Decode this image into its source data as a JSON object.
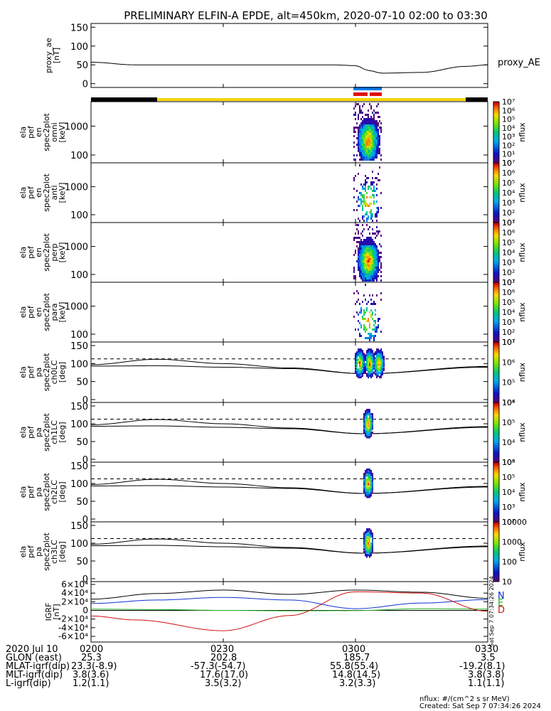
{
  "title": "PRELIMINARY ELFIN-A EPDE, alt=450km, 2020-07-10 02:00 to 03:30",
  "bar_colors": {
    "shadow": "#000000",
    "sunlit": "#f5d400",
    "dataA": "#0a78e6",
    "dataB": "#e01010"
  },
  "chart_data": [
    {
      "type": "line",
      "id": "proxy_ae",
      "ylabel_lines": [
        "proxy_ae",
        "[nT]"
      ],
      "yticks": [
        "0",
        "50",
        "100",
        "150"
      ],
      "ylim": [
        -10,
        160
      ],
      "series": [
        {
          "name": "proxy_AE",
          "x": [
            0,
            10,
            20,
            40,
            55,
            60,
            63,
            66,
            75,
            85,
            90
          ],
          "y": [
            57,
            50,
            50,
            50,
            50,
            48,
            35,
            28,
            30,
            46,
            50
          ]
        }
      ]
    },
    {
      "type": "heatmap",
      "id": "spec_omni",
      "ylabel_lines": [
        "ela",
        "pef",
        "en",
        "spec2plot",
        "omni",
        "[keV]"
      ],
      "yticks": [
        "100",
        "1000"
      ],
      "scale": "log",
      "cbar_label": "nflux",
      "cbar_ticks": [
        "10",
        "10¹",
        "10²",
        "10³",
        "10⁴",
        "10⁵",
        "10⁶",
        "10⁷"
      ]
    },
    {
      "type": "heatmap",
      "id": "spec_anti",
      "ylabel_lines": [
        "ela",
        "pef",
        "en",
        "spec2plot",
        "anti",
        "[keV]"
      ],
      "yticks": [
        "100",
        "1000"
      ],
      "scale": "log",
      "cbar_label": "nflux",
      "cbar_ticks": [
        "10¹",
        "10²",
        "10³",
        "10⁴",
        "10⁵",
        "10⁶",
        "10⁷"
      ]
    },
    {
      "type": "heatmap",
      "id": "spec_perp",
      "ylabel_lines": [
        "ela",
        "pef",
        "en",
        "spec2plot",
        "perp",
        "[keV]"
      ],
      "yticks": [
        "100",
        "1000"
      ],
      "scale": "log",
      "cbar_label": "nflux",
      "cbar_ticks": [
        "10¹",
        "10²",
        "10³",
        "10⁴",
        "10⁵",
        "10⁶",
        "10⁷"
      ]
    },
    {
      "type": "heatmap",
      "id": "spec_para",
      "ylabel_lines": [
        "ela",
        "pef",
        "en",
        "spec2plot",
        "para",
        "[keV]"
      ],
      "yticks": [
        "100",
        "1000"
      ],
      "scale": "log",
      "cbar_label": "nflux",
      "cbar_ticks": [
        "10¹",
        "10²",
        "10³",
        "10⁴",
        "10⁵",
        "10⁶",
        "10⁷"
      ]
    },
    {
      "type": "heatmap",
      "id": "pa_ch0",
      "ylabel_lines": [
        "ela",
        "pef",
        "pa",
        "spec2plot",
        "ch0LC",
        "[deg]"
      ],
      "yticks": [
        "0",
        "50",
        "100",
        "150"
      ],
      "cbar_label": "nflux",
      "cbar_ticks": [
        "10⁴",
        "10⁵",
        "10⁶",
        "10⁷"
      ]
    },
    {
      "type": "heatmap",
      "id": "pa_ch1",
      "ylabel_lines": [
        "ela",
        "pef",
        "pa",
        "spec2plot",
        "ch1LC",
        "[deg]"
      ],
      "yticks": [
        "0",
        "50",
        "100",
        "150"
      ],
      "cbar_label": "nflux",
      "cbar_ticks": [
        "10³",
        "10⁴",
        "10⁵",
        "10⁶"
      ]
    },
    {
      "type": "heatmap",
      "id": "pa_ch2",
      "ylabel_lines": [
        "ela",
        "pef",
        "pa",
        "spec2plot",
        "ch2LC",
        "[deg]"
      ],
      "yticks": [
        "0",
        "50",
        "100",
        "150"
      ],
      "cbar_label": "nflux",
      "cbar_ticks": [
        "10²",
        "10³",
        "10⁴",
        "10⁵",
        "10⁶"
      ]
    },
    {
      "type": "heatmap",
      "id": "pa_ch3",
      "ylabel_lines": [
        "ela",
        "pef",
        "pa",
        "spec2plot",
        "ch3LC",
        "[deg]"
      ],
      "yticks": [
        "0",
        "50",
        "100",
        "150"
      ],
      "cbar_label": "nflux",
      "cbar_ticks": [
        "10",
        "100",
        "1000",
        "10000"
      ]
    },
    {
      "type": "line",
      "id": "igrf",
      "ylabel_lines": [
        "IGRF",
        "[nT]"
      ],
      "yticks": [
        "-6×10⁴",
        "-4×10⁴",
        "-2×10⁴",
        "0",
        "2×10⁴",
        "4×10⁴",
        "6×10⁴"
      ],
      "ylim": [
        -60000,
        60000
      ],
      "legend": [
        "N",
        "E",
        "D"
      ],
      "series": [
        {
          "name": "N",
          "color": "#1030d0",
          "x": [
            0,
            15,
            30,
            45,
            60,
            75,
            90
          ],
          "y": [
            16000,
            24000,
            30000,
            24000,
            4000,
            17000,
            25000
          ]
        },
        {
          "name": "E",
          "color": "#20b020",
          "x": [
            0,
            15,
            30,
            45,
            60,
            75,
            90
          ],
          "y": [
            3000,
            2000,
            0,
            -1000,
            -500,
            4000,
            3000
          ]
        },
        {
          "name": "D",
          "color": "#d01010",
          "x": [
            0,
            10,
            30,
            45,
            60,
            75,
            90
          ],
          "y": [
            -13000,
            -22000,
            -47000,
            -12000,
            43000,
            40000,
            -2000
          ]
        },
        {
          "name": "total",
          "color": "#000000",
          "x": [
            0,
            15,
            30,
            45,
            60,
            75,
            90
          ],
          "y": [
            26000,
            39000,
            47000,
            37000,
            47000,
            42000,
            28000
          ]
        }
      ]
    }
  ],
  "footer": {
    "rows": [
      {
        "label": "2020 Jul 10",
        "values": [
          "0200",
          "0230",
          "0300",
          "0330"
        ]
      },
      {
        "label": "GLON (east)",
        "values": [
          "25.3",
          "202.8",
          "185.7",
          "3.5"
        ]
      },
      {
        "label": "MLAT-igrf(dip)",
        "values": [
          "23.3(-8.9)",
          "-57.3(-54.7)",
          "55.8(55.4)",
          "-19.2(8.1)"
        ]
      },
      {
        "label": "MLT-igrf(dip)",
        "values": [
          "3.8(3.6)",
          "17.6(17.0)",
          "14.8(14.5)",
          "3.8(3.8)"
        ]
      },
      {
        "label": "L-igrf(dip)",
        "values": [
          "1.2(1.1)",
          "3.5(3.2)",
          "3.2(3.3)",
          "1.1(1.1)"
        ]
      }
    ],
    "units_note": "nflux: #/(cm^2 s sr MeV)",
    "created": "Created: Sat Sep  7 07:34:26 2024",
    "side_stamp": "Sat Sep  7 07:34:26 2024"
  }
}
